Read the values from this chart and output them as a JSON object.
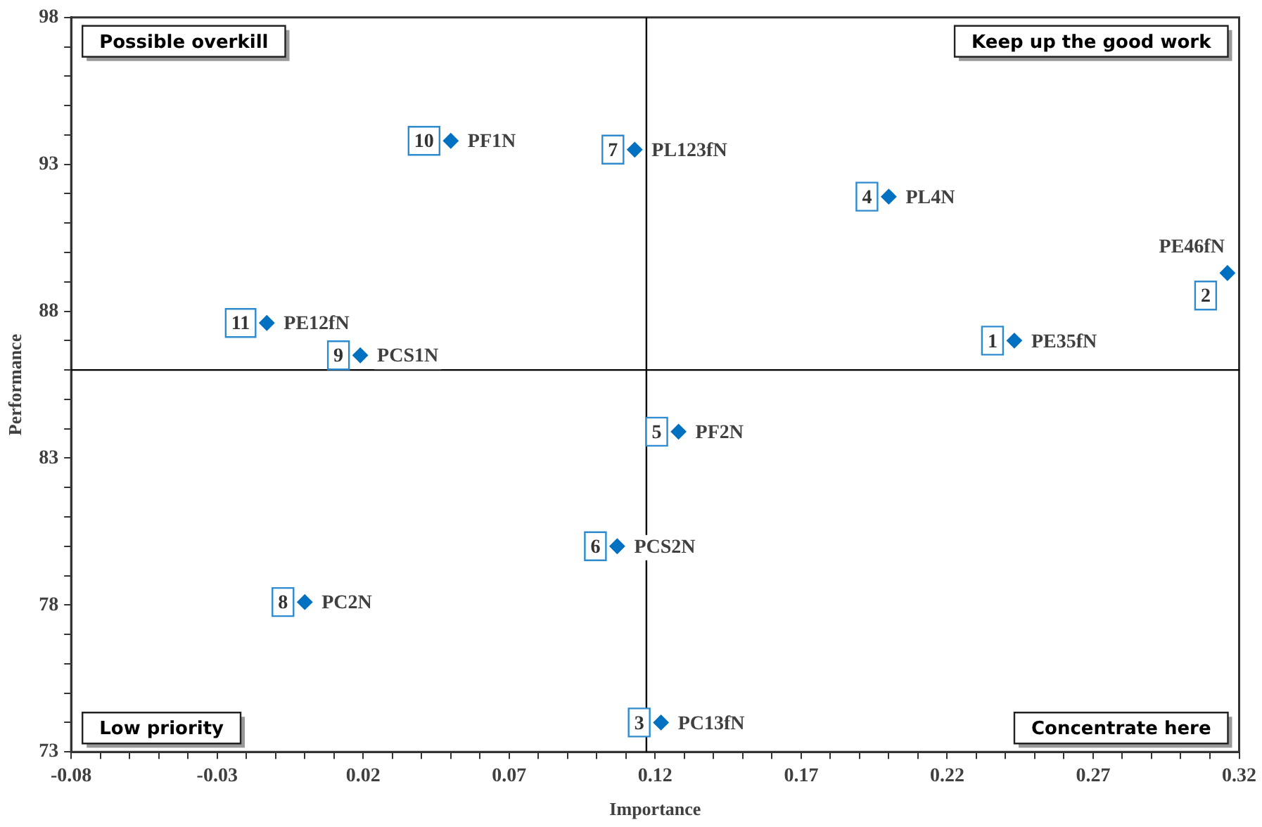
{
  "chart_data": {
    "type": "scatter",
    "xlabel": "Importance",
    "ylabel": "Performance",
    "xlim": [
      -0.08,
      0.32
    ],
    "xticks": [
      -0.08,
      {
        "value": -0.07,
        "label": null
      },
      {
        "value": -0.06,
        "label": null
      },
      {
        "value": -0.05,
        "label": null
      },
      {
        "value": -0.04,
        "label": null
      },
      -0.03,
      {
        "value": -0.02,
        "label": null
      },
      {
        "value": -0.01,
        "label": null
      },
      {
        "value": 0,
        "label": null
      },
      {
        "value": 0.01,
        "label": null
      },
      0.02,
      {
        "value": 0.03,
        "label": null
      },
      {
        "value": 0.04,
        "label": null
      },
      {
        "value": 0.05,
        "label": null
      },
      {
        "value": 0.06,
        "label": null
      },
      0.07,
      {
        "value": 0.08,
        "label": null
      },
      {
        "value": 0.09,
        "label": null
      },
      {
        "value": 0.1,
        "label": null
      },
      {
        "value": 0.11,
        "label": null
      },
      0.12,
      {
        "value": 0.13,
        "label": null
      },
      {
        "value": 0.14,
        "label": null
      },
      {
        "value": 0.15,
        "label": null
      },
      {
        "value": 0.16,
        "label": null
      },
      0.17,
      {
        "value": 0.18,
        "label": null
      },
      {
        "value": 0.19,
        "label": null
      },
      {
        "value": 0.2,
        "label": null
      },
      {
        "value": 0.21,
        "label": null
      },
      0.22,
      {
        "value": 0.23,
        "label": null
      },
      {
        "value": 0.24,
        "label": null
      },
      {
        "value": 0.25,
        "label": null
      },
      {
        "value": 0.26,
        "label": null
      },
      0.27,
      {
        "value": 0.28,
        "label": null
      },
      {
        "value": 0.29,
        "label": null
      },
      {
        "value": 0.3,
        "label": null
      },
      {
        "value": 0.31,
        "label": null
      },
      0.32
    ],
    "ylim": [
      73,
      98
    ],
    "yticks": [
      73,
      {
        "value": 74,
        "label": null
      },
      {
        "value": 75,
        "label": null
      },
      {
        "value": 76,
        "label": null
      },
      {
        "value": 77,
        "label": null
      },
      78,
      {
        "value": 79,
        "label": null
      },
      {
        "value": 80,
        "label": null
      },
      {
        "value": 81,
        "label": null
      },
      {
        "value": 82,
        "label": null
      },
      83,
      {
        "value": 84,
        "label": null
      },
      {
        "value": 85,
        "label": null
      },
      {
        "value": 86,
        "label": null
      },
      {
        "value": 87,
        "label": null
      },
      88,
      {
        "value": 89,
        "label": null
      },
      {
        "value": 90,
        "label": null
      },
      {
        "value": 91,
        "label": null
      },
      {
        "value": 92,
        "label": null
      },
      93,
      {
        "value": 94,
        "label": null
      },
      {
        "value": 95,
        "label": null
      },
      {
        "value": 96,
        "label": null
      },
      {
        "value": 97,
        "label": null
      },
      98
    ],
    "grid": false,
    "legend": false,
    "marker": "diamond",
    "ref_lines": [
      {
        "axis": "x",
        "value": 0.117,
        "color": "#000000"
      },
      {
        "axis": "y",
        "value": 86,
        "color": "#000000"
      }
    ],
    "series": [
      {
        "name": "PE35fN",
        "color": "#0070c0",
        "x": [
          0.243
        ],
        "values": [
          87.0
        ]
      },
      {
        "name": "PE46fN",
        "color": "#0070c0",
        "x": [
          0.316
        ],
        "values": [
          89.3
        ]
      },
      {
        "name": "PC13fN",
        "color": "#0070c0",
        "x": [
          0.122
        ],
        "values": [
          74.0
        ]
      },
      {
        "name": "PL4N",
        "color": "#0070c0",
        "x": [
          0.2
        ],
        "values": [
          91.9
        ]
      },
      {
        "name": "PF2N",
        "color": "#0070c0",
        "x": [
          0.128
        ],
        "values": [
          83.9
        ]
      },
      {
        "name": "PCS2N",
        "color": "#0070c0",
        "x": [
          0.107
        ],
        "values": [
          80.0
        ]
      },
      {
        "name": "PL123fN",
        "color": "#0070c0",
        "x": [
          0.113
        ],
        "values": [
          93.5
        ]
      },
      {
        "name": "PC2N",
        "color": "#0070c0",
        "x": [
          0.0
        ],
        "values": [
          78.1
        ]
      },
      {
        "name": "PCS1N",
        "color": "#0070c0",
        "x": [
          0.019
        ],
        "values": [
          86.5
        ]
      },
      {
        "name": "PF1N",
        "color": "#0070c0",
        "x": [
          0.05
        ],
        "values": [
          93.8
        ]
      },
      {
        "name": "PE12fN",
        "color": "#0070c0",
        "x": [
          -0.013
        ],
        "values": [
          87.6
        ]
      }
    ],
    "annotations": [
      "Possible overkill",
      "Keep up the good work",
      "Low priority",
      "Concentrate here",
      {
        "text": "1",
        "x": 0.243,
        "y": 87.0
      },
      {
        "text": "2",
        "x": 0.316,
        "y": 89.3
      },
      {
        "text": "3",
        "x": 0.122,
        "y": 74.0
      },
      {
        "text": "4",
        "x": 0.2,
        "y": 91.9
      },
      {
        "text": "5",
        "x": 0.128,
        "y": 83.9
      },
      {
        "text": "6",
        "x": 0.107,
        "y": 80.0
      },
      {
        "text": "7",
        "x": 0.113,
        "y": 93.5
      },
      {
        "text": "8",
        "x": 0.0,
        "y": 78.1
      },
      {
        "text": "9",
        "x": 0.019,
        "y": 86.5
      },
      {
        "text": "10",
        "x": 0.05,
        "y": 93.8
      },
      {
        "text": "11",
        "x": -0.013,
        "y": 87.6
      }
    ]
  }
}
